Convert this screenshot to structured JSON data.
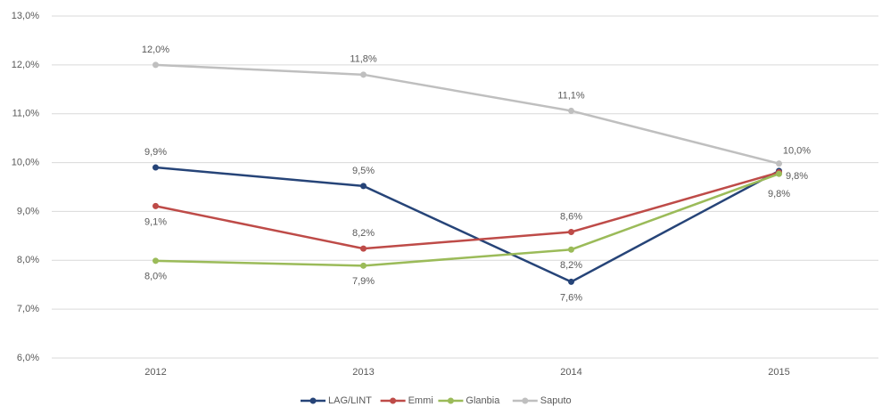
{
  "chart_data": {
    "type": "line",
    "categories": [
      "2012",
      "2013",
      "2014",
      "2015"
    ],
    "series": [
      {
        "name": "LAG/LINT",
        "color": "#264478",
        "values": [
          9.9,
          9.52,
          7.56,
          9.83
        ],
        "value_labels": [
          "9,9%",
          "9,5%",
          "7,6%",
          "9,8%"
        ]
      },
      {
        "name": "Emmi",
        "color": "#be4b48",
        "values": [
          9.11,
          8.24,
          8.58,
          9.8
        ],
        "value_labels": [
          "9,1%",
          "8,2%",
          "8,6%",
          null
        ]
      },
      {
        "name": "Glanbia",
        "color": "#9bbb59",
        "values": [
          7.99,
          7.89,
          8.22,
          9.77
        ],
        "value_labels": [
          "8,0%",
          "7,9%",
          "8,2%",
          "9,8%"
        ]
      },
      {
        "name": "Saputo",
        "color": "#bfbfbf",
        "values": [
          12.0,
          11.8,
          11.06,
          9.98
        ],
        "value_labels": [
          "12,0%",
          "11,8%",
          "11,1%",
          "10,0%"
        ]
      }
    ],
    "ylim": [
      6,
      13
    ],
    "yticks": [
      {
        "value": 6,
        "label": "6,0%"
      },
      {
        "value": 7,
        "label": "7,0%"
      },
      {
        "value": 8,
        "label": "8,0%"
      },
      {
        "value": 9,
        "label": "9,0%"
      },
      {
        "value": 10,
        "label": "10,0%"
      },
      {
        "value": 11,
        "label": "11,0%"
      },
      {
        "value": 12,
        "label": "12,0%"
      },
      {
        "value": 13,
        "label": "13,0%"
      }
    ],
    "grid": true,
    "legend": "bottom"
  }
}
